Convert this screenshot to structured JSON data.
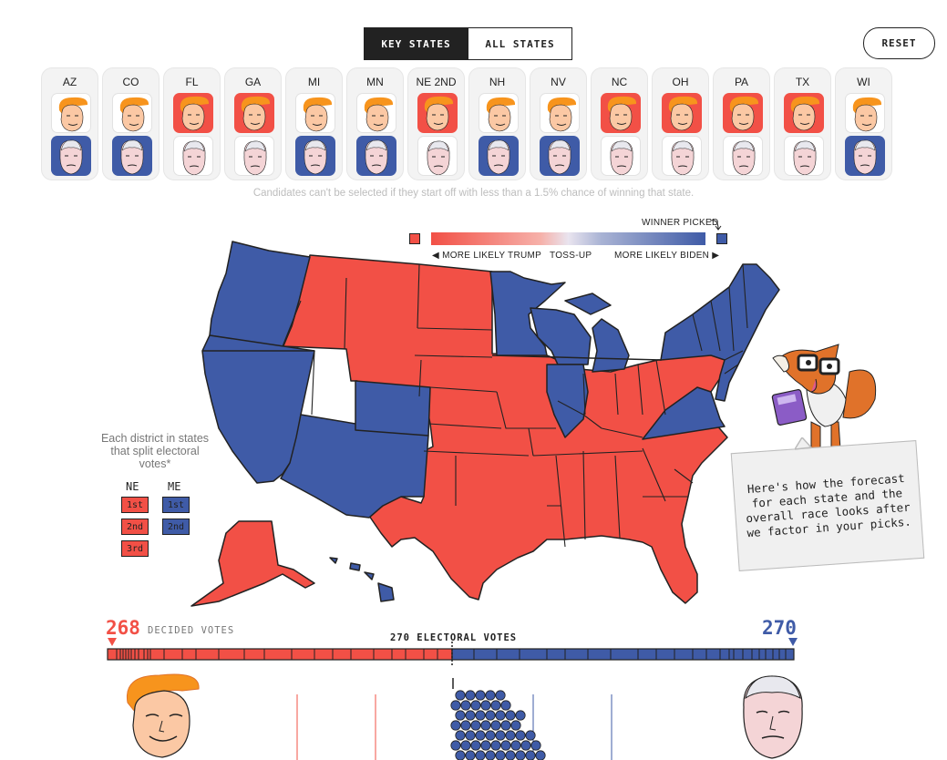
{
  "tabs": {
    "key_states": "KEY STATES",
    "all_states": "ALL STATES"
  },
  "reset_label": "RESET",
  "states": [
    {
      "abbr": "AZ",
      "trump": "plain",
      "biden": "blue"
    },
    {
      "abbr": "CO",
      "trump": "plain",
      "biden": "blue"
    },
    {
      "abbr": "FL",
      "trump": "red",
      "biden": "plain"
    },
    {
      "abbr": "GA",
      "trump": "red",
      "biden": "plain"
    },
    {
      "abbr": "MI",
      "trump": "plain",
      "biden": "blue"
    },
    {
      "abbr": "MN",
      "trump": "plain",
      "biden": "blue"
    },
    {
      "abbr": "NE 2ND",
      "trump": "red",
      "biden": "plain"
    },
    {
      "abbr": "NH",
      "trump": "plain",
      "biden": "blue"
    },
    {
      "abbr": "NV",
      "trump": "plain",
      "biden": "blue"
    },
    {
      "abbr": "NC",
      "trump": "red",
      "biden": "plain"
    },
    {
      "abbr": "OH",
      "trump": "red",
      "biden": "plain"
    },
    {
      "abbr": "PA",
      "trump": "red",
      "biden": "plain"
    },
    {
      "abbr": "TX",
      "trump": "red",
      "biden": "plain"
    },
    {
      "abbr": "WI",
      "trump": "plain",
      "biden": "blue"
    }
  ],
  "note": "Candidates can't be selected if they start off with less than a 1.5% chance of winning that state.",
  "legend": {
    "winner_picked": "WINNER PICKED",
    "more_trump": "◀ MORE LIKELY TRUMP",
    "tossup": "TOSS-UP",
    "more_biden": "MORE LIKELY BIDEN ▶"
  },
  "district": {
    "title": "Each district in states that split electoral votes*",
    "ne": {
      "label": "NE",
      "boxes": [
        "1st",
        "2nd",
        "3rd"
      ]
    },
    "me": {
      "label": "ME",
      "boxes": [
        "1st",
        "2nd"
      ]
    }
  },
  "bubble_text": "Here's how the forecast for each state and the overall race looks after we factor in your picks.",
  "tally": {
    "trump_votes": "268",
    "decided_label": "DECIDED VOTES",
    "threshold_label": "270 ELECTORAL VOTES",
    "biden_votes": "270"
  },
  "colors": {
    "trump": "#f25046",
    "biden": "#3f5ba7",
    "dark": "#222222"
  },
  "icons": [
    "trump-face-icon",
    "biden-face-icon",
    "fox-mascot-icon"
  ]
}
